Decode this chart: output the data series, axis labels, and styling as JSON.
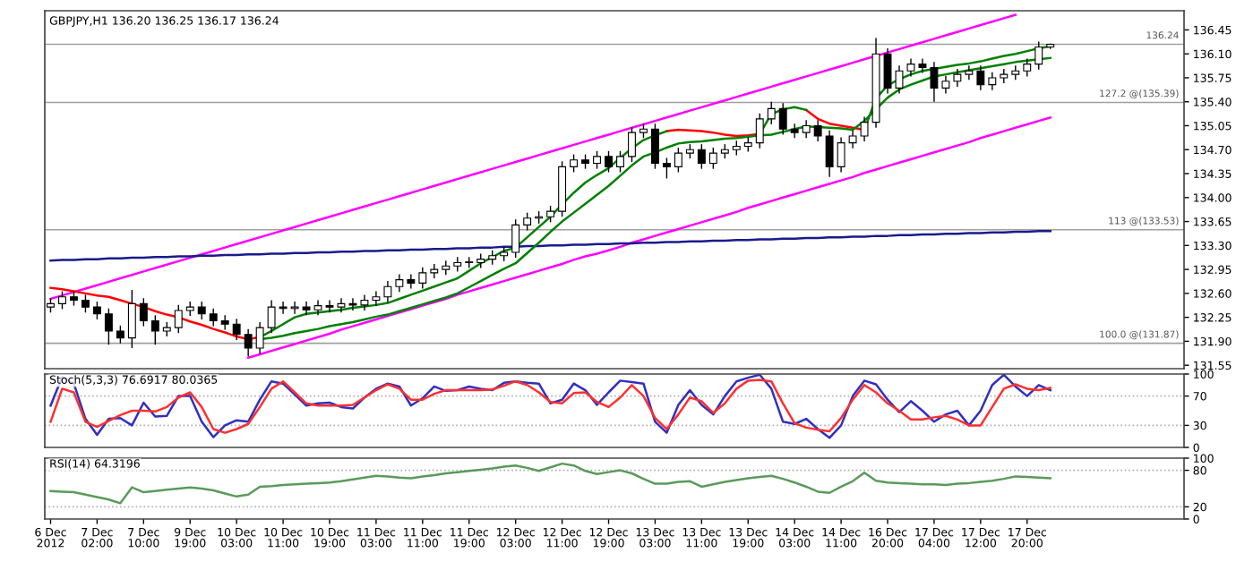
{
  "chart_data": [
    {
      "type": "candlestick",
      "title": "GBPJPY,H1 136.20 136.25 136.17 136.24",
      "tick_labels": "y",
      "ylim": [
        131.5,
        136.73
      ],
      "yticks": [
        {
          "value": 131.55,
          "label": "131.55"
        },
        {
          "value": 131.9,
          "label": "131.90"
        },
        {
          "value": 132.25,
          "label": "132.25"
        },
        {
          "value": 132.6,
          "label": "132.60"
        },
        {
          "value": 132.95,
          "label": "132.95"
        },
        {
          "value": 133.3,
          "label": "133.30"
        },
        {
          "value": 133.65,
          "label": "133.65"
        },
        {
          "value": 134.0,
          "label": "134.00"
        },
        {
          "value": 134.35,
          "label": "134.35"
        },
        {
          "value": 134.7,
          "label": "134.70"
        },
        {
          "value": 135.05,
          "label": "135.05"
        },
        {
          "value": 135.4,
          "label": "135.40"
        },
        {
          "value": 135.75,
          "label": "135.75"
        },
        {
          "value": 136.1,
          "label": "136.10"
        },
        {
          "value": 136.45,
          "label": "136.45"
        }
      ],
      "ohlc": [
        [
          132.4,
          132.53,
          132.32,
          132.45
        ],
        [
          132.45,
          132.63,
          132.37,
          132.55
        ],
        [
          132.55,
          132.63,
          132.42,
          132.5
        ],
        [
          132.5,
          132.58,
          132.32,
          132.4
        ],
        [
          132.4,
          132.48,
          132.22,
          132.3
        ],
        [
          132.3,
          132.38,
          131.85,
          132.05
        ],
        [
          132.05,
          132.13,
          131.87,
          131.95
        ],
        [
          131.95,
          132.65,
          131.8,
          132.45
        ],
        [
          132.45,
          132.53,
          132.12,
          132.2
        ],
        [
          132.2,
          132.28,
          131.85,
          132.05
        ],
        [
          132.05,
          132.18,
          131.97,
          132.1
        ],
        [
          132.1,
          132.43,
          132.02,
          132.35
        ],
        [
          132.35,
          132.48,
          132.27,
          132.4
        ],
        [
          132.4,
          132.48,
          132.22,
          132.3
        ],
        [
          132.3,
          132.38,
          132.12,
          132.2
        ],
        [
          132.2,
          132.28,
          132.07,
          132.15
        ],
        [
          132.15,
          132.23,
          131.92,
          132.0
        ],
        [
          132.0,
          132.08,
          131.68,
          131.8
        ],
        [
          131.8,
          132.18,
          131.72,
          132.1
        ],
        [
          132.1,
          132.5,
          132.02,
          132.4
        ],
        [
          132.4,
          132.48,
          132.3,
          132.38
        ],
        [
          132.38,
          132.48,
          132.3,
          132.4
        ],
        [
          132.4,
          132.48,
          132.28,
          132.36
        ],
        [
          132.36,
          132.5,
          132.28,
          132.42
        ],
        [
          132.42,
          132.5,
          132.32,
          132.4
        ],
        [
          132.4,
          132.53,
          132.32,
          132.45
        ],
        [
          132.45,
          132.53,
          132.35,
          132.43
        ],
        [
          132.43,
          132.58,
          132.35,
          132.5
        ],
        [
          132.5,
          132.63,
          132.42,
          132.55
        ],
        [
          132.55,
          132.78,
          132.47,
          132.7
        ],
        [
          132.7,
          132.88,
          132.62,
          132.8
        ],
        [
          132.8,
          132.88,
          132.67,
          132.75
        ],
        [
          132.75,
          132.98,
          132.67,
          132.9
        ],
        [
          132.9,
          133.03,
          132.82,
          132.95
        ],
        [
          132.95,
          133.08,
          132.87,
          133.0
        ],
        [
          133.0,
          133.13,
          132.92,
          133.05
        ],
        [
          133.05,
          133.13,
          132.97,
          133.05
        ],
        [
          133.05,
          133.18,
          132.97,
          133.1
        ],
        [
          133.1,
          133.23,
          133.02,
          133.15
        ],
        [
          133.15,
          133.28,
          133.07,
          133.2
        ],
        [
          133.2,
          133.68,
          133.12,
          133.6
        ],
        [
          133.6,
          133.78,
          133.52,
          133.7
        ],
        [
          133.7,
          133.8,
          133.62,
          133.72
        ],
        [
          133.72,
          133.88,
          133.64,
          133.8
        ],
        [
          133.8,
          134.53,
          133.72,
          134.45
        ],
        [
          134.45,
          134.63,
          134.37,
          134.55
        ],
        [
          134.55,
          134.63,
          134.42,
          134.5
        ],
        [
          134.5,
          134.68,
          134.42,
          134.6
        ],
        [
          134.6,
          134.68,
          134.37,
          134.45
        ],
        [
          134.45,
          134.68,
          134.37,
          134.6
        ],
        [
          134.6,
          135.03,
          134.52,
          134.95
        ],
        [
          134.95,
          135.08,
          134.87,
          135.0
        ],
        [
          135.0,
          135.08,
          134.42,
          134.5
        ],
        [
          134.5,
          134.58,
          134.28,
          134.45
        ],
        [
          134.45,
          134.73,
          134.37,
          134.65
        ],
        [
          134.65,
          134.78,
          134.57,
          134.7
        ],
        [
          134.7,
          134.78,
          134.42,
          134.5
        ],
        [
          134.5,
          134.73,
          134.42,
          134.65
        ],
        [
          134.65,
          134.78,
          134.57,
          134.7
        ],
        [
          134.7,
          134.83,
          134.62,
          134.75
        ],
        [
          134.75,
          134.88,
          134.67,
          134.8
        ],
        [
          134.8,
          135.23,
          134.72,
          135.15
        ],
        [
          135.15,
          135.4,
          135.07,
          135.3
        ],
        [
          135.3,
          135.38,
          134.92,
          135.0
        ],
        [
          135.0,
          135.08,
          134.87,
          134.95
        ],
        [
          134.95,
          135.13,
          134.87,
          135.05
        ],
        [
          135.05,
          135.13,
          134.82,
          134.9
        ],
        [
          134.9,
          134.98,
          134.3,
          134.45
        ],
        [
          134.45,
          134.88,
          134.37,
          134.8
        ],
        [
          134.8,
          134.98,
          134.72,
          134.9
        ],
        [
          134.9,
          135.18,
          134.82,
          135.1
        ],
        [
          135.1,
          136.33,
          135.02,
          136.1
        ],
        [
          136.1,
          136.18,
          135.52,
          135.6
        ],
        [
          135.6,
          135.93,
          135.52,
          135.85
        ],
        [
          135.85,
          136.03,
          135.77,
          135.95
        ],
        [
          135.95,
          136.03,
          135.82,
          135.9
        ],
        [
          135.9,
          135.98,
          135.4,
          135.6
        ],
        [
          135.6,
          135.78,
          135.52,
          135.7
        ],
        [
          135.7,
          135.88,
          135.62,
          135.8
        ],
        [
          135.8,
          135.93,
          135.72,
          135.85
        ],
        [
          135.85,
          135.93,
          135.57,
          135.65
        ],
        [
          135.65,
          135.83,
          135.57,
          135.75
        ],
        [
          135.75,
          135.88,
          135.67,
          135.8
        ],
        [
          135.8,
          135.93,
          135.72,
          135.85
        ],
        [
          135.85,
          136.03,
          135.77,
          135.95
        ],
        [
          135.95,
          136.28,
          135.87,
          136.2
        ],
        [
          136.2,
          136.25,
          136.17,
          136.24
        ]
      ],
      "series": [
        {
          "type": "line",
          "color": "#ff00ff",
          "values": [
            132.52,
            132.57,
            132.62,
            132.67,
            132.72,
            132.77,
            132.82,
            132.87,
            132.92,
            132.97,
            133.02,
            133.07,
            133.12,
            133.17,
            133.22,
            133.27,
            133.32,
            133.37,
            133.42,
            133.47,
            133.52,
            133.57,
            133.62,
            133.67,
            133.72,
            133.77,
            133.82,
            133.87,
            133.92,
            133.97,
            134.02,
            134.07,
            134.12,
            134.17,
            134.22,
            134.27,
            134.32,
            134.37,
            134.42,
            134.47,
            134.52,
            134.57,
            134.62,
            134.67,
            134.72,
            134.77,
            134.82,
            134.87,
            134.92,
            134.97,
            135.02,
            135.07,
            135.12,
            135.17,
            135.22,
            135.27,
            135.32,
            135.37,
            135.42,
            135.47,
            135.52,
            135.57,
            135.62,
            135.67,
            135.72,
            135.77,
            135.82,
            135.87,
            135.92,
            135.97,
            136.02,
            136.07,
            136.12,
            136.17,
            136.22,
            136.27,
            136.32,
            136.37,
            136.42,
            136.47,
            136.52,
            136.57,
            136.62,
            136.67,
            null,
            null,
            null
          ]
        },
        {
          "type": "line",
          "color": "#ff00ff",
          "values": [
            null,
            null,
            null,
            null,
            null,
            null,
            null,
            null,
            null,
            null,
            null,
            null,
            null,
            null,
            null,
            null,
            null,
            131.66,
            131.71,
            131.76,
            131.81,
            131.86,
            131.91,
            131.96,
            132.01,
            132.07,
            132.12,
            132.17,
            132.22,
            132.27,
            132.32,
            132.37,
            132.42,
            132.47,
            132.52,
            132.58,
            132.63,
            132.68,
            132.73,
            132.78,
            132.83,
            132.88,
            132.93,
            132.98,
            133.03,
            133.09,
            133.14,
            133.18,
            133.23,
            133.28,
            133.34,
            133.39,
            133.44,
            133.49,
            133.54,
            133.59,
            133.64,
            133.69,
            133.74,
            133.79,
            133.85,
            133.9,
            133.95,
            134.0,
            134.05,
            134.1,
            134.15,
            134.2,
            134.25,
            134.3,
            134.36,
            134.41,
            134.46,
            134.51,
            134.56,
            134.61,
            134.66,
            134.71,
            134.76,
            134.81,
            134.87,
            134.92,
            134.97,
            135.02,
            135.07,
            135.12,
            135.17
          ]
        },
        {
          "type": "line",
          "color": "#1a1a8c",
          "values": [
            133.08,
            133.09,
            133.09,
            133.1,
            133.1,
            133.11,
            133.11,
            133.12,
            133.12,
            133.13,
            133.13,
            133.14,
            133.14,
            133.15,
            133.15,
            133.16,
            133.16,
            133.17,
            133.17,
            133.18,
            133.18,
            133.19,
            133.19,
            133.2,
            133.2,
            133.21,
            133.21,
            133.22,
            133.22,
            133.23,
            133.23,
            133.24,
            133.24,
            133.25,
            133.25,
            133.26,
            133.26,
            133.27,
            133.27,
            133.28,
            133.28,
            133.29,
            133.29,
            133.3,
            133.3,
            133.31,
            133.31,
            133.32,
            133.32,
            133.33,
            133.33,
            133.34,
            133.34,
            133.35,
            133.35,
            133.36,
            133.36,
            133.37,
            133.37,
            133.38,
            133.38,
            133.39,
            133.39,
            133.4,
            133.4,
            133.41,
            133.41,
            133.42,
            133.42,
            133.43,
            133.43,
            133.44,
            133.44,
            133.45,
            133.45,
            133.46,
            133.46,
            133.47,
            133.47,
            133.48,
            133.48,
            133.49,
            133.49,
            133.5,
            133.5,
            133.51,
            133.51
          ]
        },
        {
          "type": "line",
          "color": "#ff0000",
          "values": [
            132.68,
            132.66,
            132.63,
            132.6,
            132.57,
            132.55,
            132.5,
            132.45,
            132.4,
            132.34,
            132.29,
            132.25,
            132.19,
            132.14,
            132.08,
            132.03,
            131.97,
            131.93,
            131.96,
            null,
            null,
            null,
            null,
            null,
            null,
            null,
            null,
            null,
            null,
            null,
            null,
            null,
            null,
            null,
            null,
            null,
            null,
            null,
            null,
            null,
            null,
            null,
            null,
            null,
            null,
            null,
            null,
            null,
            null,
            null,
            null,
            null,
            null,
            134.97,
            134.99,
            134.98,
            134.97,
            134.95,
            134.92,
            134.9,
            134.91,
            134.93,
            null,
            null,
            null,
            135.28,
            135.15,
            135.08,
            135.05,
            135.02,
            134.99,
            null,
            null,
            null,
            null,
            null,
            null,
            null,
            null,
            null,
            null,
            null,
            null,
            null,
            null,
            null,
            null
          ]
        },
        {
          "type": "line",
          "color": "#008000",
          "values": [
            null,
            null,
            null,
            null,
            null,
            null,
            null,
            null,
            null,
            null,
            null,
            null,
            null,
            null,
            null,
            null,
            null,
            null,
            131.96,
            132.05,
            132.15,
            132.25,
            132.3,
            132.32,
            132.34,
            132.36,
            132.39,
            132.41,
            132.43,
            132.46,
            132.52,
            132.58,
            132.64,
            132.7,
            132.76,
            132.82,
            132.93,
            133.04,
            133.13,
            133.22,
            133.27,
            133.42,
            133.57,
            133.72,
            133.9,
            134.07,
            134.22,
            134.33,
            134.43,
            134.58,
            134.72,
            134.84,
            134.91,
            134.97,
            null,
            null,
            null,
            null,
            null,
            null,
            null,
            134.93,
            135.22,
            135.29,
            135.32,
            135.28,
            null,
            null,
            null,
            null,
            134.99,
            135.45,
            135.64,
            135.73,
            135.8,
            135.85,
            135.88,
            135.91,
            135.94,
            135.96,
            135.99,
            136.03,
            136.07,
            136.1,
            136.14,
            136.18,
            136.21
          ]
        },
        {
          "type": "line",
          "color": "#008000",
          "values": [
            null,
            null,
            null,
            null,
            null,
            null,
            null,
            null,
            null,
            null,
            null,
            null,
            null,
            null,
            null,
            null,
            null,
            null,
            131.93,
            131.95,
            131.98,
            132.02,
            132.05,
            132.08,
            132.12,
            132.15,
            132.18,
            132.22,
            132.26,
            132.29,
            132.34,
            132.39,
            132.44,
            132.49,
            132.54,
            132.6,
            132.69,
            132.78,
            132.87,
            132.96,
            133.04,
            133.19,
            133.34,
            133.5,
            133.65,
            133.78,
            133.91,
            134.04,
            134.17,
            134.32,
            134.47,
            134.6,
            134.66,
            134.73,
            134.79,
            134.81,
            134.82,
            134.84,
            134.86,
            134.87,
            134.89,
            134.91,
            134.92,
            134.96,
            135.0,
            135.04,
            135.03,
            135.02,
            135.01,
            134.99,
            135.12,
            135.29,
            135.46,
            135.58,
            135.65,
            135.71,
            135.77,
            135.8,
            135.83,
            135.86,
            135.89,
            135.92,
            135.95,
            135.98,
            136.0,
            136.02,
            136.04
          ]
        }
      ],
      "ref_lines": [
        {
          "axis": "y",
          "value": 136.24,
          "label": "136.24",
          "color": "#a0a0a0",
          "line_style": "solid"
        },
        {
          "axis": "y",
          "value": 135.39,
          "label": "127.2 @(135.39)",
          "color": "#a0a0a0",
          "line_style": "solid"
        },
        {
          "axis": "y",
          "value": 133.53,
          "label": "113 @(133.53)",
          "color": "#a0a0a0",
          "line_style": "solid"
        },
        {
          "axis": "y",
          "value": 131.87,
          "label": "100.0 @(131.87)",
          "color": "#a0a0a0",
          "line_style": "solid"
        }
      ]
    },
    {
      "type": "line",
      "title": "Stoch(5,3,3) 76.6917 80.0365",
      "tick_labels": "y",
      "ylim": [
        0,
        100
      ],
      "yticks": [
        0,
        30,
        70,
        100
      ],
      "series": [
        {
          "color": "#3030c0",
          "values": [
            57,
            96,
            87,
            39,
            17,
            39,
            40,
            30,
            61,
            42,
            43,
            70,
            70,
            35,
            14,
            30,
            37,
            35,
            65,
            90,
            87,
            72,
            57,
            60,
            61,
            55,
            53,
            68,
            80,
            87,
            83,
            57,
            67,
            83,
            77,
            78,
            83,
            80,
            78,
            88,
            90,
            88,
            87,
            60,
            65,
            87,
            78,
            58,
            75,
            91,
            89,
            87,
            35,
            20,
            58,
            78,
            58,
            45,
            70,
            90,
            95,
            99,
            80,
            35,
            32,
            39,
            25,
            13,
            30,
            70,
            91,
            86,
            65,
            48,
            63,
            50,
            35,
            45,
            50,
            30,
            50,
            85,
            99,
            83,
            70,
            85,
            78
          ]
        },
        {
          "color": "#ff3030",
          "values": [
            35,
            80,
            75,
            35,
            28,
            36,
            44,
            50,
            50,
            49,
            55,
            68,
            75,
            55,
            25,
            20,
            25,
            32,
            55,
            80,
            90,
            75,
            60,
            57,
            57,
            57,
            58,
            68,
            78,
            86,
            80,
            65,
            65,
            73,
            78,
            78,
            78,
            78,
            79,
            84,
            90,
            85,
            75,
            62,
            60,
            74,
            75,
            62,
            55,
            68,
            85,
            70,
            40,
            25,
            45,
            68,
            63,
            47,
            60,
            80,
            91,
            92,
            90,
            60,
            33,
            27,
            24,
            22,
            40,
            65,
            85,
            75,
            60,
            50,
            38,
            38,
            41,
            43,
            38,
            30,
            30,
            55,
            80,
            86,
            80,
            78,
            81
          ]
        }
      ],
      "ref_lines": [
        {
          "axis": "y",
          "value": 70,
          "color": "#b0b0b0",
          "line_style": "dotted"
        },
        {
          "axis": "y",
          "value": 30,
          "color": "#b0b0b0",
          "line_style": "dotted"
        }
      ]
    },
    {
      "type": "line",
      "title": "RSI(14) 64.3196",
      "ylim": [
        0,
        100
      ],
      "yticks": [
        0,
        20,
        80,
        100
      ],
      "categories": [
        "6 Dec 2012",
        null,
        null,
        null,
        "7 Dec 02:00",
        null,
        null,
        null,
        "7 Dec 10:00",
        null,
        null,
        null,
        "9 Dec 19:00",
        null,
        null,
        null,
        "10 Dec 03:00",
        null,
        null,
        null,
        "10 Dec 11:00",
        null,
        null,
        null,
        "10 Dec 19:00",
        null,
        null,
        null,
        "11 Dec 03:00",
        null,
        null,
        null,
        "11 Dec 11:00",
        null,
        null,
        null,
        "11 Dec 19:00",
        null,
        null,
        null,
        "12 Dec 03:00",
        null,
        null,
        null,
        "12 Dec 11:00",
        null,
        null,
        null,
        "12 Dec 19:00",
        null,
        null,
        null,
        "13 Dec 03:00",
        null,
        null,
        null,
        "13 Dec 11:00",
        null,
        null,
        null,
        "13 Dec 19:00",
        null,
        null,
        null,
        "14 Dec 03:00",
        null,
        null,
        null,
        "14 Dec 11:00",
        null,
        null,
        null,
        "16 Dec 20:00",
        null,
        null,
        null,
        "17 Dec 04:00",
        null,
        null,
        null,
        "17 Dec 12:00",
        null,
        null,
        null,
        "17 Dec 20:00",
        null,
        null
      ],
      "series": [
        {
          "color": "#5a9a5a",
          "values": [
            46,
            45,
            44,
            40,
            36,
            32,
            26,
            52,
            44,
            46,
            48,
            50,
            52,
            50,
            47,
            42,
            37,
            40,
            53,
            54,
            56,
            57,
            58,
            59,
            60,
            62,
            65,
            68,
            71,
            70,
            68,
            67,
            70,
            72,
            75,
            77,
            79,
            81,
            83,
            86,
            88,
            84,
            79,
            85,
            91,
            88,
            79,
            74,
            77,
            80,
            75,
            66,
            58,
            58,
            61,
            62,
            53,
            57,
            61,
            64,
            67,
            69,
            71,
            66,
            60,
            53,
            45,
            43,
            53,
            62,
            76,
            63,
            60,
            59,
            58,
            57,
            57,
            56,
            58,
            59,
            61,
            63,
            66,
            70,
            69,
            68,
            67
          ]
        }
      ],
      "ref_lines": [
        {
          "axis": "y",
          "value": 80,
          "color": "#b0b0b0",
          "line_style": "dotted"
        },
        {
          "axis": "y",
          "value": 20,
          "color": "#b0b0b0",
          "line_style": "dotted"
        }
      ]
    }
  ]
}
